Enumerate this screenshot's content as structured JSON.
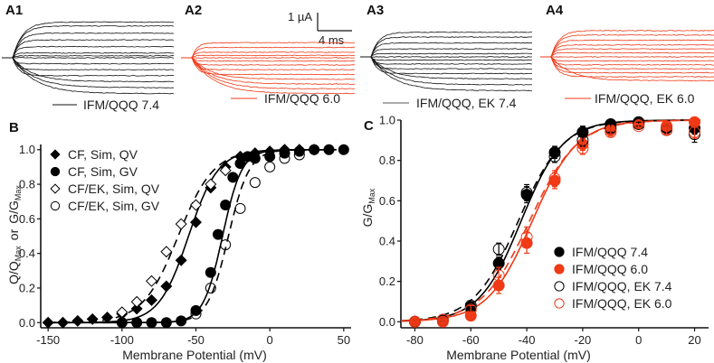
{
  "panel_labels": {
    "A1": "A1",
    "A2": "A2",
    "A3": "A3",
    "A4": "A4",
    "B": "B",
    "C": "C"
  },
  "scale_bar": {
    "current": "1 µA",
    "time": "4 ms"
  },
  "traces": [
    {
      "id": "A1",
      "legend": "IFM/QQQ 7.4",
      "color": "#111111",
      "final_levels": [
        -0.9,
        -0.75,
        -0.6,
        -0.45,
        -0.3,
        -0.15,
        0,
        0.05,
        0.12,
        0.28,
        0.45,
        0.62,
        0.8,
        0.9
      ]
    },
    {
      "id": "A2",
      "legend": "IFM/QQQ 6.0",
      "color": "#f03a17",
      "final_levels": [
        -0.9,
        -0.78,
        -0.66,
        -0.54,
        -0.42,
        -0.3,
        -0.18,
        -0.08,
        0,
        0.06,
        0.14,
        0.26,
        0.38
      ]
    },
    {
      "id": "A3",
      "legend": "IFM/QQQ, EK 7.4",
      "color": "#111111",
      "final_levels": [
        -0.85,
        -0.7,
        -0.55,
        -0.42,
        -0.3,
        -0.18,
        -0.08,
        0,
        0.08,
        0.2,
        0.35,
        0.5,
        0.62
      ]
    },
    {
      "id": "A4",
      "legend": "IFM/QQQ, EK 6.0",
      "color": "#f03a17",
      "final_levels": [
        -0.6,
        -0.5,
        -0.4,
        -0.3,
        -0.2,
        -0.1,
        0,
        0.1,
        0.2,
        0.3,
        0.42,
        0.55,
        0.66
      ]
    }
  ],
  "chart_data": [
    {
      "type": "scatter",
      "panel": "B",
      "title": "",
      "xlabel": "Membrane Potential (mV)",
      "ylabel": "Q/Q_Max or G/G_Max",
      "ylabel_parts": {
        "q": "Q/Q",
        "q_sub": "Max",
        "or": "or",
        "g": "G/G",
        "g_sub": "Max"
      },
      "xlim": [
        -155,
        55
      ],
      "ylim": [
        -0.03,
        1.03
      ],
      "xticks": [
        -150,
        -100,
        -50,
        0,
        50
      ],
      "xtick_labels": [
        "-150",
        "-100",
        "-50",
        "0",
        "50"
      ],
      "yticks": [
        0,
        0.2,
        0.4,
        0.6,
        0.8,
        1.0
      ],
      "ytick_labels": [
        "0.0",
        "0.2",
        "0.4",
        "0.6",
        "0.8",
        "1.0"
      ],
      "legend_position": "top-left",
      "series": [
        {
          "name": "CF, Sim, QV",
          "marker": "diamond-filled",
          "color": "#000000",
          "fit": {
            "style": "solid",
            "v_half": -55,
            "k": 10
          },
          "x": [
            -150,
            -140,
            -130,
            -120,
            -110,
            -100,
            -90,
            -80,
            -70,
            -60,
            -50,
            -40,
            -30,
            -20,
            -10,
            0,
            10,
            20,
            30
          ],
          "y": [
            0.0,
            0.0,
            0.01,
            0.02,
            0.03,
            0.05,
            0.08,
            0.13,
            0.21,
            0.36,
            0.58,
            0.78,
            0.9,
            0.96,
            0.98,
            0.99,
            1.0,
            1.0,
            1.0
          ]
        },
        {
          "name": "CF, Sim, GV",
          "marker": "circle-filled",
          "color": "#000000",
          "fit": {
            "style": "solid",
            "v_half": -32,
            "k": 6.5
          },
          "x": [
            -100,
            -90,
            -80,
            -70,
            -60,
            -50,
            -40,
            -35,
            -30,
            -25,
            -20,
            -15,
            -10,
            0,
            10,
            20,
            30,
            40,
            50
          ],
          "y": [
            0.0,
            0.0,
            0.0,
            0.0,
            0.01,
            0.07,
            0.29,
            0.51,
            0.68,
            0.84,
            0.92,
            0.96,
            0.95,
            0.96,
            0.98,
            0.99,
            1.0,
            1.0,
            1.0
          ]
        },
        {
          "name": "CF/EK, Sim, QV",
          "marker": "diamond-open",
          "color": "#000000",
          "fit": {
            "style": "dashed",
            "v_half": -62,
            "k": 12
          },
          "x": [
            -100,
            -90,
            -80,
            -70,
            -60,
            -50,
            -40,
            -30
          ],
          "y": [
            0.06,
            0.12,
            0.24,
            0.41,
            0.57,
            0.68,
            0.8,
            0.88
          ]
        },
        {
          "name": "CF/EK, Sim, GV",
          "marker": "circle-open",
          "color": "#000000",
          "fit": {
            "style": "dashed",
            "v_half": -28,
            "k": 7
          },
          "x": [
            -50,
            -40,
            -30,
            -20,
            -10,
            0,
            10,
            20
          ],
          "y": [
            0.05,
            0.2,
            0.45,
            0.66,
            0.81,
            0.9,
            0.95,
            0.97
          ]
        }
      ]
    },
    {
      "type": "scatter",
      "panel": "C",
      "title": "",
      "xlabel": "Membrane Potential (mV)",
      "ylabel": "G/G_Max",
      "ylabel_parts": {
        "g": "G/G",
        "g_sub": "Max"
      },
      "xlim": [
        -85,
        25
      ],
      "ylim": [
        -0.03,
        1.0
      ],
      "xticks": [
        -80,
        -60,
        -40,
        -20,
        0,
        20
      ],
      "xtick_labels": [
        "-80",
        "-60",
        "-40",
        "-20",
        "0",
        "20"
      ],
      "yticks": [
        0,
        0.2,
        0.4,
        0.6,
        0.8,
        1.0
      ],
      "ytick_labels": [
        "0.0",
        "0.2",
        "0.4",
        "0.6",
        "0.8",
        "1.0"
      ],
      "legend_position": "bottom-right",
      "series": [
        {
          "name": "IFM/QQQ 7.4",
          "marker": "circle-filled",
          "color": "#000000",
          "fit": {
            "style": "solid",
            "v_half": -42,
            "k": 7.5
          },
          "x": [
            -80,
            -70,
            -60,
            -50,
            -40,
            -30,
            -20,
            -10,
            0,
            10,
            20
          ],
          "y": [
            0.0,
            0.01,
            0.07,
            0.29,
            0.63,
            0.84,
            0.94,
            0.98,
            0.99,
            0.96,
            0.96
          ],
          "err": [
            0.01,
            0.01,
            0.02,
            0.03,
            0.04,
            0.03,
            0.03,
            0.02,
            0.01,
            0.02,
            0.03
          ]
        },
        {
          "name": "IFM/QQQ 6.0",
          "marker": "circle-filled",
          "color": "#f03a17",
          "fit": {
            "style": "solid",
            "v_half": -38,
            "k": 8
          },
          "x": [
            -80,
            -70,
            -60,
            -50,
            -40,
            -30,
            -20,
            -10,
            0,
            10,
            20
          ],
          "y": [
            0.0,
            0.0,
            0.03,
            0.18,
            0.39,
            0.7,
            0.88,
            0.95,
            0.98,
            0.97,
            0.99
          ],
          "err": [
            0.01,
            0.01,
            0.02,
            0.04,
            0.05,
            0.04,
            0.03,
            0.02,
            0.01,
            0.02,
            0.02
          ]
        },
        {
          "name": "IFM/QQQ, EK 7.4",
          "marker": "circle-open",
          "color": "#000000",
          "fit": {
            "style": "dashed",
            "v_half": -43,
            "k": 8
          },
          "x": [
            -80,
            -70,
            -60,
            -50,
            -40,
            -30,
            -20,
            -10,
            0,
            10,
            20
          ],
          "y": [
            0.0,
            0.01,
            0.08,
            0.36,
            0.64,
            0.82,
            0.9,
            0.96,
            0.98,
            0.95,
            0.93
          ],
          "err": [
            0.01,
            0.01,
            0.02,
            0.03,
            0.04,
            0.03,
            0.03,
            0.02,
            0.01,
            0.02,
            0.04
          ]
        },
        {
          "name": "IFM/QQQ, EK 6.0",
          "marker": "circle-open",
          "color": "#f03a17",
          "fit": {
            "style": "dashed",
            "v_half": -39,
            "k": 8.5
          },
          "x": [
            -80,
            -70,
            -60,
            -50,
            -40,
            -30,
            -20,
            -10,
            0,
            10,
            20
          ],
          "y": [
            0.0,
            0.01,
            0.06,
            0.23,
            0.42,
            0.71,
            0.86,
            0.94,
            0.97,
            0.95,
            0.94
          ],
          "err": [
            0.01,
            0.01,
            0.02,
            0.04,
            0.05,
            0.04,
            0.03,
            0.02,
            0.01,
            0.02,
            0.03
          ]
        }
      ]
    }
  ]
}
